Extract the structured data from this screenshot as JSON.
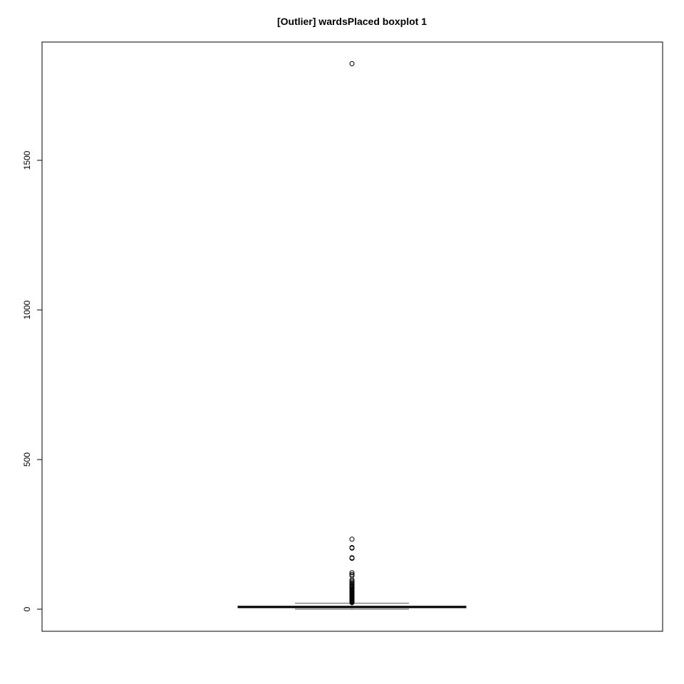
{
  "chart_data": {
    "type": "boxplot",
    "title": "[Outlier] wardsPlaced boxplot 1",
    "xlabel": "",
    "ylabel": "",
    "ylim": [
      -75,
      1900
    ],
    "yticks": [
      0,
      500,
      1000,
      1500
    ],
    "ytick_labels": [
      "0",
      "500",
      "1000",
      "1500"
    ],
    "grid": false,
    "legend": "none",
    "boxes": [
      {
        "whisker_low": 0,
        "q1": 5,
        "median": 7,
        "q3": 10,
        "whisker_high": 20,
        "outliers": [
          1823,
          234,
          206,
          204,
          172,
          170,
          122,
          116,
          112,
          98,
          94,
          90,
          86,
          82,
          78,
          75,
          72,
          69,
          66,
          63,
          60,
          57,
          54,
          51,
          48,
          45,
          42,
          40,
          38,
          36,
          34,
          32,
          30,
          28,
          26,
          24,
          22
        ]
      }
    ]
  },
  "colors": {
    "box_fill": "#ffffff",
    "whisker": "#888888",
    "median": "#000000",
    "outlier": "#000000",
    "axis": "#000000"
  }
}
